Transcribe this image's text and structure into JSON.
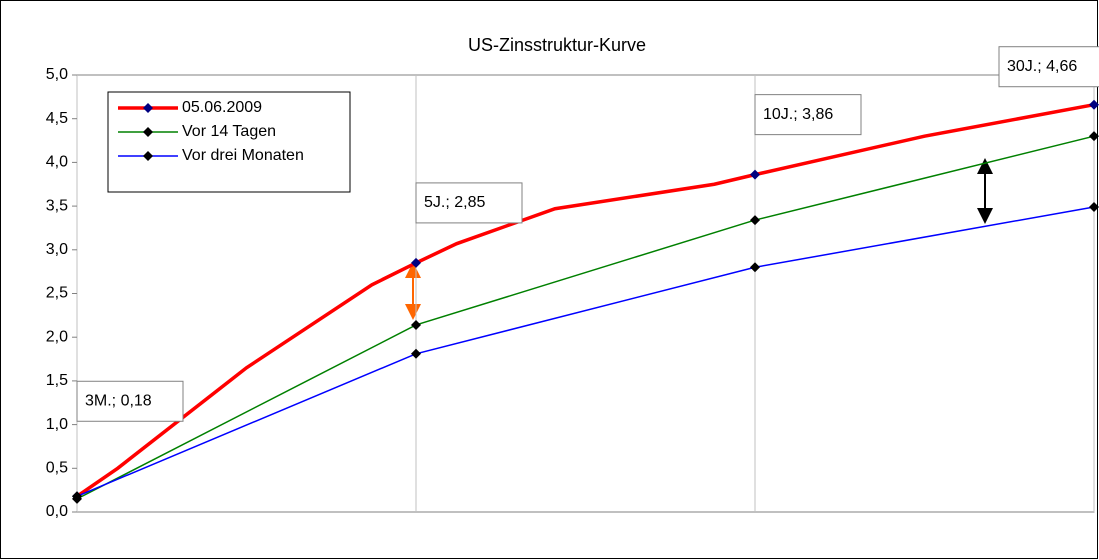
{
  "chart_data": {
    "type": "line",
    "title": "US-Zinsstruktur-Kurve",
    "xlim": [
      0,
      3
    ],
    "xticks": [
      0,
      1,
      2,
      3
    ],
    "ylim": [
      0,
      5
    ],
    "yticks": [
      {
        "value": 0,
        "label": "0,0"
      },
      {
        "value": 0.5,
        "label": "0,5"
      },
      {
        "value": 1,
        "label": "1,0"
      },
      {
        "value": 1.5,
        "label": "1,5"
      },
      {
        "value": 2,
        "label": "2,0"
      },
      {
        "value": 2.5,
        "label": "2,5"
      },
      {
        "value": 3,
        "label": "3,0"
      },
      {
        "value": 3.5,
        "label": "3,5"
      },
      {
        "value": 4,
        "label": "4,0"
      },
      {
        "value": 4.5,
        "label": "4,5"
      },
      {
        "value": 5,
        "label": "5,0"
      }
    ],
    "grid": true,
    "legend": "upper left",
    "series": [
      {
        "name": "05.06.2009",
        "color": "#ff0000",
        "marker_color": "#000080",
        "x": [
          0,
          0.12,
          0.5,
          0.87,
          1,
          1.12,
          1.41,
          1.88,
          2,
          2.5,
          3
        ],
        "values": [
          0.18,
          0.5,
          1.65,
          2.6,
          2.85,
          3.07,
          3.47,
          3.75,
          3.86,
          4.3,
          4.66
        ],
        "value_labels": [
          "3M.; 0,18",
          null,
          null,
          null,
          "5J.; 2,85",
          null,
          null,
          null,
          "10J.; 3,86",
          null,
          "30J.; 4,66"
        ]
      },
      {
        "name": "Vor 14 Tagen",
        "color": "#008000",
        "marker_color": "#000000",
        "x": [
          0,
          1,
          2,
          3
        ],
        "values": [
          0.15,
          2.14,
          3.34,
          4.3
        ]
      },
      {
        "name": "Vor drei Monaten",
        "color": "#0000ff",
        "marker_color": "#000000",
        "x": [
          0,
          1,
          2,
          3
        ],
        "values": [
          0.18,
          1.81,
          2.8,
          3.49
        ]
      }
    ]
  }
}
